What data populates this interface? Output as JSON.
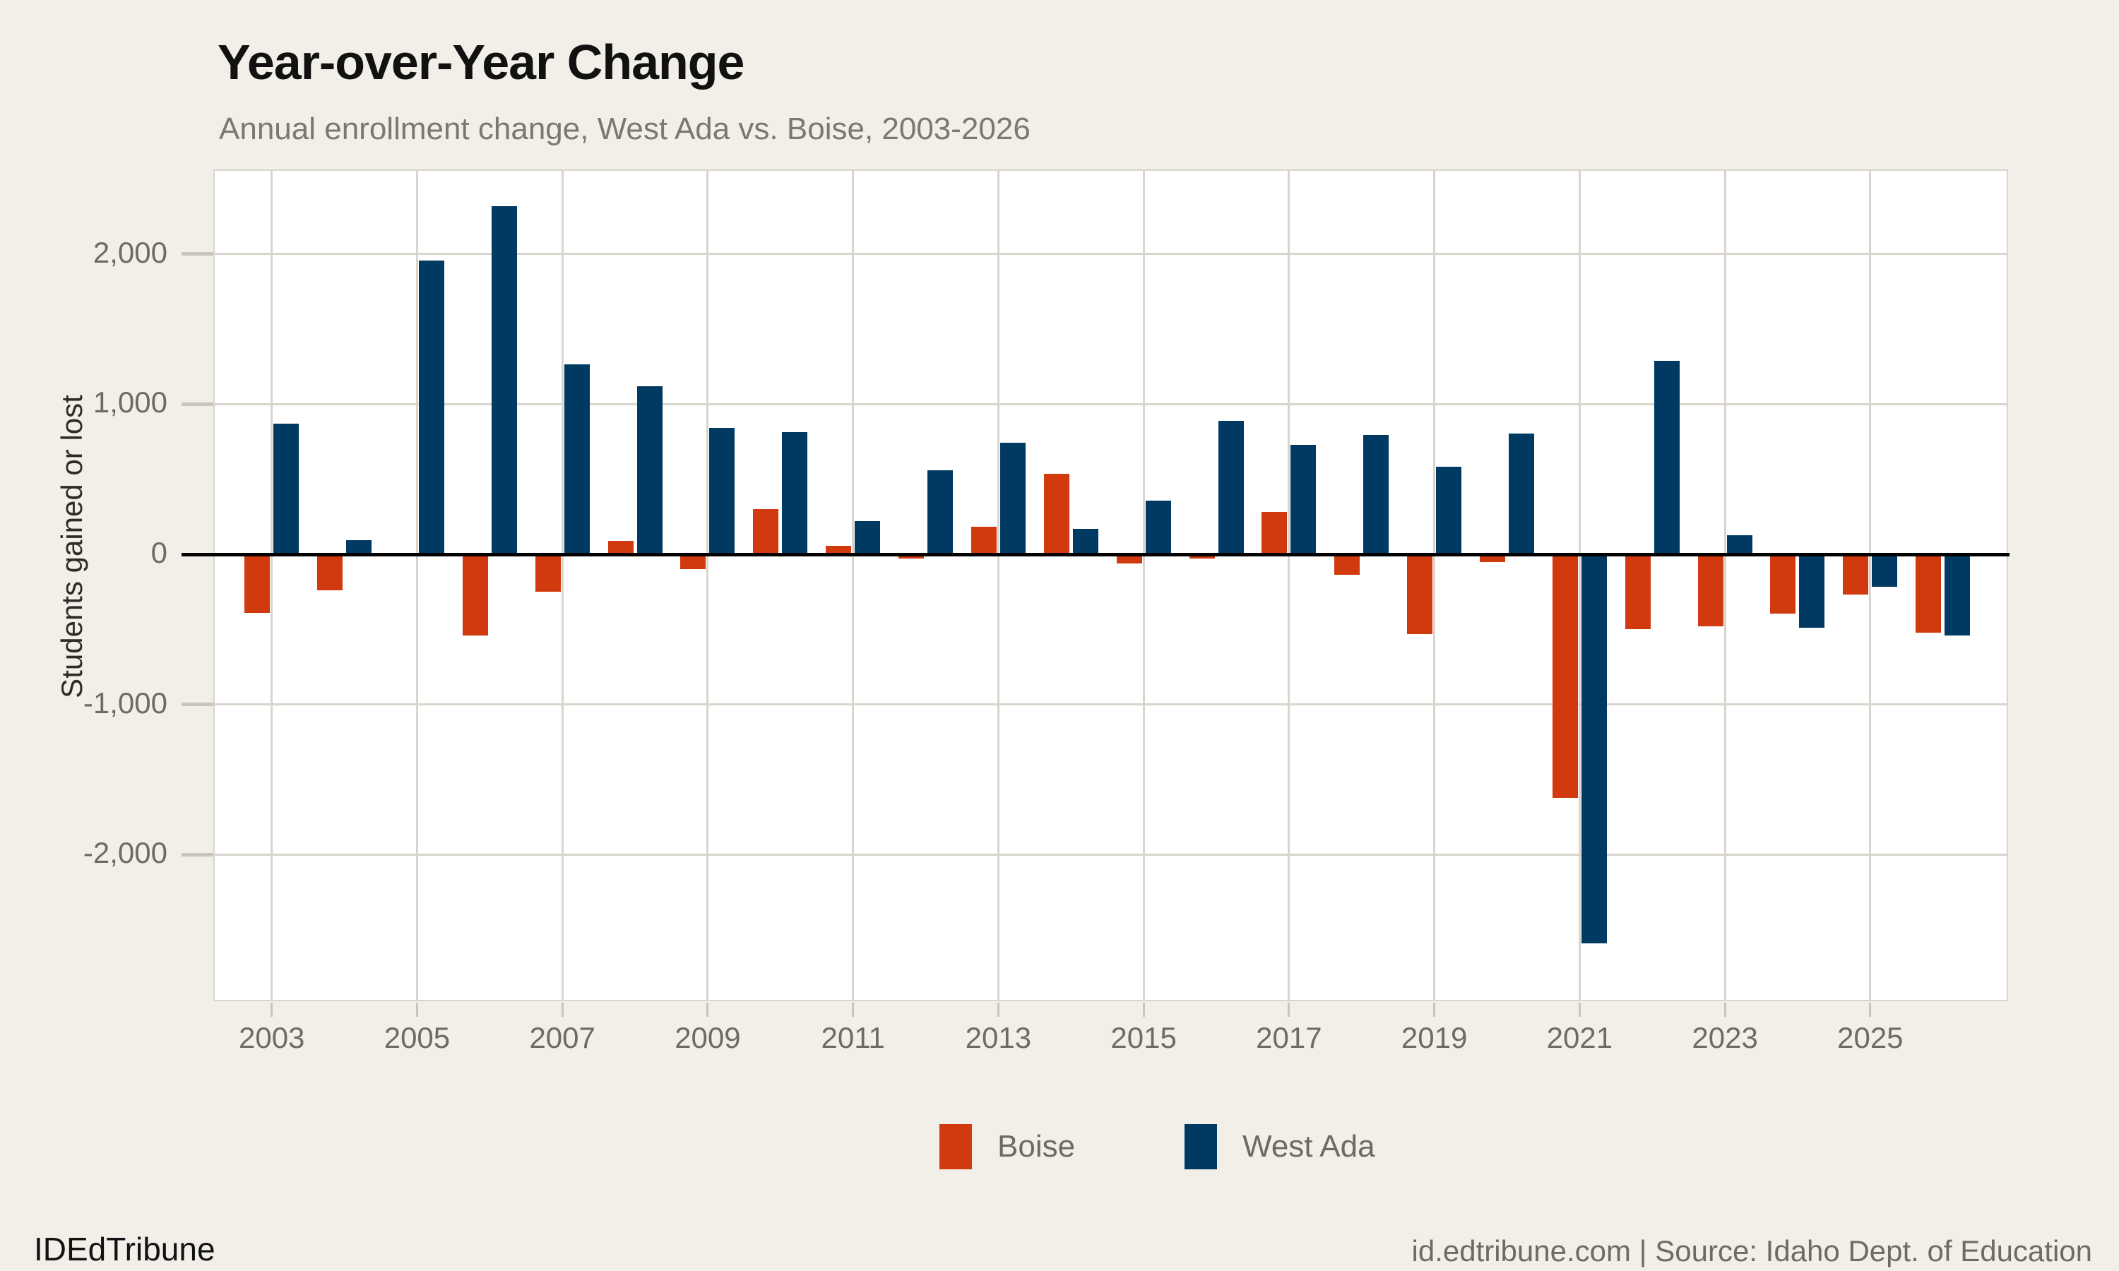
{
  "header": {
    "title": "Year-over-Year Change",
    "subtitle": "Annual enrollment change, West Ada vs. Boise, 2003-2026"
  },
  "chart_data": {
    "type": "bar",
    "title": "Year-over-Year Change",
    "subtitle": "Annual enrollment change, West Ada vs. Boise, 2003-2026",
    "xlabel": "",
    "ylabel": "Students gained or lost",
    "categories": [
      2003,
      2004,
      2005,
      2006,
      2007,
      2008,
      2009,
      2010,
      2011,
      2012,
      2013,
      2014,
      2015,
      2016,
      2017,
      2018,
      2019,
      2020,
      2021,
      2022,
      2023,
      2024,
      2025,
      2026
    ],
    "series": [
      {
        "name": "Boise",
        "color": "#d13a0e",
        "values": [
          -390,
          -240,
          -15,
          -540,
          -250,
          90,
          -100,
          300,
          55,
          -30,
          185,
          535,
          -60,
          -30,
          280,
          -135,
          -530,
          -50,
          -1620,
          -500,
          -480,
          -395,
          -270,
          -520
        ]
      },
      {
        "name": "West Ada",
        "color": "#003a63",
        "values": [
          870,
          95,
          1955,
          2320,
          1265,
          1120,
          840,
          815,
          220,
          560,
          745,
          170,
          355,
          890,
          730,
          795,
          585,
          805,
          -2590,
          1290,
          125,
          -490,
          -215,
          -540
        ]
      }
    ],
    "ylim": [
      -2985,
      2555
    ],
    "yticks": [
      2000,
      1000,
      0,
      -1000,
      -2000
    ],
    "ytick_labels": [
      "2,000",
      "1,000",
      "0",
      "-1,000",
      "-2,000"
    ],
    "xticks": [
      2003,
      2005,
      2007,
      2009,
      2011,
      2013,
      2015,
      2017,
      2019,
      2021,
      2023,
      2025
    ],
    "grid": true,
    "legend_position": "bottom",
    "zero_line": true
  },
  "legend": {
    "items": [
      {
        "label": "Boise",
        "color": "#d13a0e"
      },
      {
        "label": "West Ada",
        "color": "#003a63"
      }
    ]
  },
  "footer": {
    "brand": "IDEdTribune",
    "source": "id.edtribune.com | Source: Idaho Dept. of Education"
  },
  "colors": {
    "background": "#f2efe8",
    "plot_background": "#ffffff",
    "gridline": "#d9d5cc",
    "axis_text": "#6e6a64",
    "zero_line": "#000000",
    "boise": "#d13a0e",
    "west_ada": "#003a63"
  }
}
